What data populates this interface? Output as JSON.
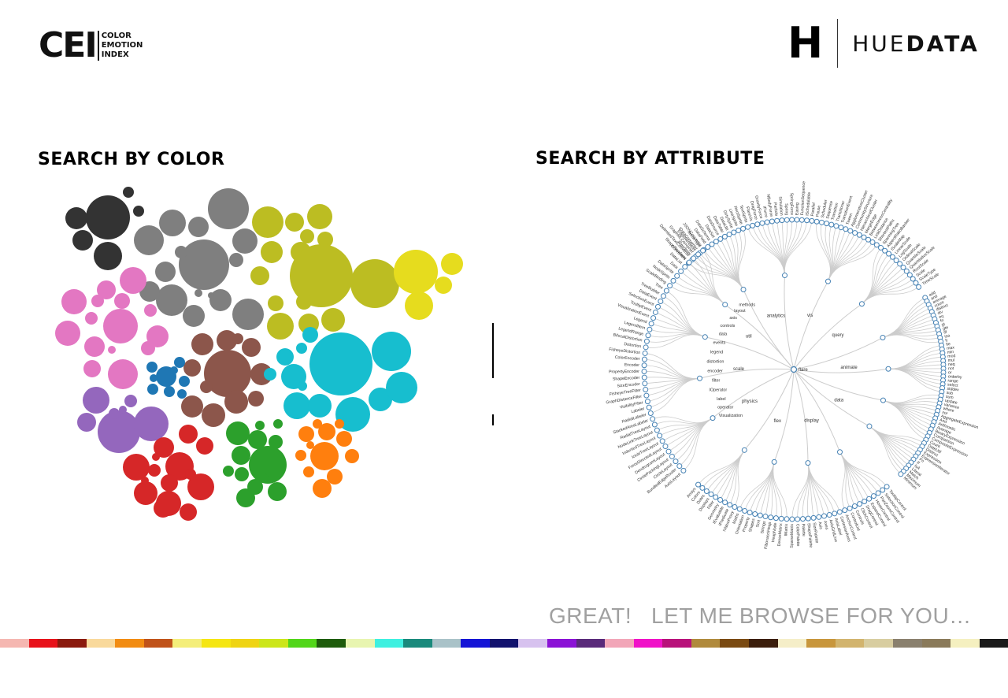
{
  "header": {
    "cei_logo": {
      "mark": "CEI",
      "line1": "COLOR",
      "line2": "EMOTION",
      "line3": "INDEX"
    },
    "huedata_logo": {
      "mark": "H",
      "word_light": "HUE",
      "word_bold": "DATA"
    }
  },
  "sections": {
    "search_by_color": "SEARCH BY COLOR",
    "search_by_attribute": "SEARCH BY ATTRIBUTE"
  },
  "cta": {
    "text": "GREAT!   LET ME BROWSE FOR YOU…"
  },
  "color_groups": [
    {
      "name": "black",
      "color": "#333333"
    },
    {
      "name": "gray",
      "color": "#7f7f7f"
    },
    {
      "name": "olive",
      "color": "#bcbd22"
    },
    {
      "name": "yellow",
      "color": "#e6dc1e"
    },
    {
      "name": "pink",
      "color": "#e377c2"
    },
    {
      "name": "brown",
      "color": "#8c564b"
    },
    {
      "name": "blue",
      "color": "#1f77b4"
    },
    {
      "name": "cyan",
      "color": "#17becf"
    },
    {
      "name": "purple",
      "color": "#9467bd"
    },
    {
      "name": "red",
      "color": "#d62728"
    },
    {
      "name": "green",
      "color": "#2ca02c"
    },
    {
      "name": "orange",
      "color": "#ff7f0e"
    }
  ],
  "tree": {
    "root": "flare",
    "link_color": "#cccccc",
    "node_color": "#4682b4",
    "branches": [
      "vis",
      "query",
      "animate",
      "data",
      "display",
      "flex",
      "physics",
      "scale",
      "util",
      "analytics"
    ],
    "sub_labels": [
      "Visualization",
      "operator",
      "label",
      "IOperator",
      "filter",
      "encoder",
      "distortion",
      "legend",
      "events",
      "data",
      "controls",
      "axis",
      "layout",
      "methods"
    ],
    "leaves_left": [
      "AxisLayout",
      "BundledEdgeRouter",
      "CircleLayout",
      "CirclePackingLayout",
      "DendrogramLayout",
      "ForceDirectedLayout",
      "IcicleTreeLayout",
      "IndentedTreeLayout",
      "NodeLinkTreeLayout",
      "RadialTreeLayout",
      "StackedAreaLabeler",
      "RadialLabeler",
      "Labeler",
      "VisibilityFilter",
      "GraphDistanceFilter",
      "FisheyeTreeFilter",
      "SizeEncoder",
      "ShapeEncoder",
      "PropertyEncoder",
      "Encoder",
      "ColorEncoder",
      "FisheyeDistortion",
      "Distortion",
      "BifocalDistortion",
      "LegendRange",
      "LegendItem",
      "Legend",
      "VisualizationEvent",
      "TooltipEvent",
      "SelectionEvent",
      "DataEvent",
      "TreeBuilder",
      "Tree",
      "ScaleBinding",
      "NodeSprite",
      "DataSprite",
      "Data",
      "DataList",
      "ShapeRenderer",
      "IRenderer",
      "EdgeRenderer",
      "ArrowType"
    ],
    "leaves_right": [
      "add",
      "and",
      "average",
      "count",
      "distinct",
      "div",
      "eq",
      "fn",
      "gt",
      "gte",
      "iff",
      "isa",
      "lt",
      "lte",
      "max",
      "min",
      "mod",
      "mul",
      "neq",
      "not",
      "or",
      "orderby",
      "range",
      "select",
      "stddev",
      "sub",
      "sum",
      "update",
      "variance",
      "where",
      "xor",
      "AggregateExpression",
      "And",
      "Arithmetic",
      "Average",
      "BinaryExpression",
      "Comparison",
      "CompositeExpression",
      "Count",
      "DateUtil",
      "Distinct",
      "Expression",
      "ExpressionIterator",
      "Fn",
      "If",
      "IsA",
      "Literal",
      "Match",
      "Maximum",
      "Minimum"
    ],
    "leaves_bottom": [
      "TooltipControl",
      "SelectionControl",
      "PanZoomControl",
      "HoverControl",
      "ExpandControl",
      "DragControl",
      "ClickControl",
      "Controls",
      "ControlList",
      "AnchorControl",
      "CartesianAxes",
      "AxisLabel",
      "AxisGridLine",
      "Axes",
      "Axis",
      "SizePalette",
      "ShapePalette",
      "Palette",
      "ColorPalette",
      "SparseMatrix",
      "IMatrix",
      "DenseMatrix",
      "HeapNode",
      "FibonacciHeap",
      "Strings",
      "Sort",
      "Shapes",
      "Property",
      "Orientation",
      "Maths",
      "IValueProxy",
      "IPredicate",
      "IEvaluable",
      "Geometry",
      "Filter",
      "Displays",
      "Dates",
      "Colors",
      "Arrays"
    ],
    "leaves_top": [
      "Converters",
      "DelimitedTextConverter",
      "GraphMLConverter",
      "IDataConverter",
      "JSONConverter",
      "DataField",
      "DataSchema",
      "DataSet",
      "DataSource",
      "DataTable",
      "DataUtil",
      "DirtySprite",
      "LineSprite",
      "RectSprite",
      "TextSprite",
      "FlareVis",
      "DragForce",
      "GravityForce",
      "IForce",
      "NBodyForce",
      "Particle",
      "Simulation",
      "Spring",
      "SpringForce",
      "Easing",
      "FunctionSequence",
      "ISchedulable",
      "Parallel",
      "Pause",
      "Scheduler",
      "Sequence",
      "Transition",
      "Transitioner",
      "TransitionEvent",
      "Tween",
      "AgglomerativeCluster",
      "CommunityStructure",
      "HierarchicalCluster",
      "MergeEdge",
      "BetweennessCentrality",
      "LinkDistance",
      "ShortestPaths",
      "SpanningTree",
      "AspectRatioBanker",
      "IScaleMap",
      "LinearScale",
      "LogScale",
      "OrdinalScale",
      "QuantileScale",
      "QuantitativeScale",
      "RootScale",
      "Scale",
      "ScaleType",
      "TimeScale"
    ]
  },
  "swatches": [
    "#f5b7b1",
    "#e8121a",
    "#8b1a0e",
    "#f9d99b",
    "#f28c12",
    "#c0531a",
    "#f4ee7a",
    "#f5e612",
    "#efd413",
    "#cce61a",
    "#52d61a",
    "#1e5c0c",
    "#e8f5b0",
    "#3ef0e0",
    "#1a8a7c",
    "#a9c2c8",
    "#1414d6",
    "#12126e",
    "#d7c2ef",
    "#8b12d6",
    "#5a2a7a",
    "#f2a6b8",
    "#f012c8",
    "#b8127a",
    "#b08a3c",
    "#7a4a12",
    "#3c1e0c",
    "#f5eec8",
    "#c8963c",
    "#d2b46e",
    "#d8cda0",
    "#8a806e",
    "#8a7a5a",
    "#f5f0c0",
    "#1a1a1a"
  ]
}
